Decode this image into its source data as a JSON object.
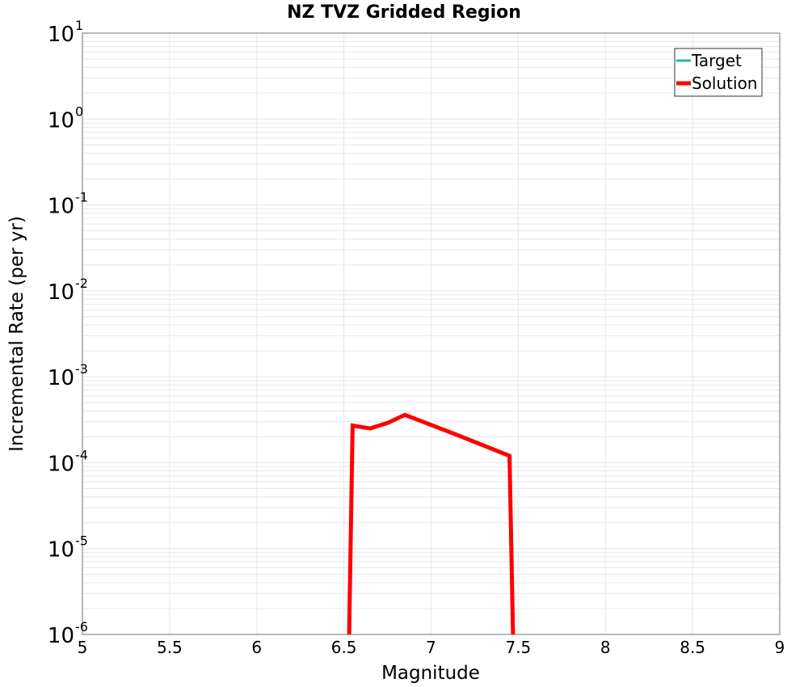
{
  "chart_data": {
    "type": "line",
    "title": "NZ TVZ Gridded Region",
    "xlabel": "Magnitude",
    "ylabel": "Incremental Rate (per yr)",
    "xlim": [
      5,
      9
    ],
    "ylim": [
      1e-06,
      10
    ],
    "yscale": "log",
    "grid": true,
    "legend_position": "upper right",
    "x_ticks": [
      "5",
      "5.5",
      "6",
      "6.5",
      "7",
      "7.5",
      "8",
      "8.5",
      "9"
    ],
    "y_ticks": [
      {
        "base": "10",
        "exp": "1"
      },
      {
        "base": "10",
        "exp": "0"
      },
      {
        "base": "10",
        "exp": "-1"
      },
      {
        "base": "10",
        "exp": "-2"
      },
      {
        "base": "10",
        "exp": "-3"
      },
      {
        "base": "10",
        "exp": "-4"
      },
      {
        "base": "10",
        "exp": "-5"
      },
      {
        "base": "10",
        "exp": "-6"
      }
    ],
    "series": [
      {
        "name": "Target",
        "color": "#1fb5b5",
        "x": [],
        "y": []
      },
      {
        "name": "Solution",
        "color": "#ff0000",
        "x": [
          6.53,
          6.55,
          6.65,
          6.75,
          6.85,
          7.15,
          7.45,
          7.47
        ],
        "y": [
          1e-06,
          0.00027,
          0.00025,
          0.00029,
          0.00036,
          0.00021,
          0.00012,
          1e-06
        ]
      }
    ]
  },
  "legend": {
    "items": [
      {
        "label": "Target",
        "color": "#1fb5b5"
      },
      {
        "label": "Solution",
        "color": "#ff0000"
      }
    ]
  }
}
